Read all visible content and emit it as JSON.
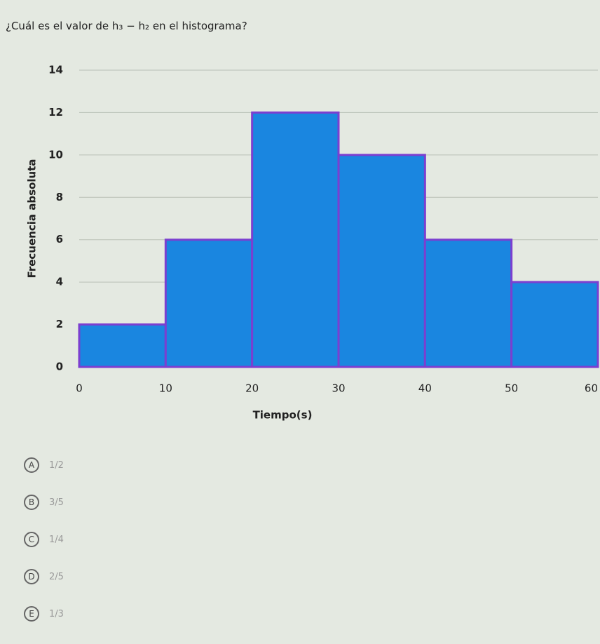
{
  "question": "¿Cuál es el valor de h₃ − h₂ en el histograma?",
  "chart_data": {
    "type": "histogram",
    "xlabel": "Tiempo(s)",
    "ylabel": "Frecuencia absoluta",
    "bins": [
      0,
      10,
      20,
      30,
      40,
      50,
      60
    ],
    "values": [
      2,
      6,
      12,
      10,
      6,
      4
    ],
    "color": "#1a86e0",
    "edgecolor": "#7b3fd0",
    "xlim": [
      0,
      60
    ],
    "xticks": [
      0,
      10,
      20,
      30,
      40,
      50,
      60
    ],
    "ylim": [
      0,
      14
    ],
    "yticks": [
      0,
      2,
      4,
      6,
      8,
      10,
      12,
      14
    ],
    "grid": true
  },
  "options": [
    {
      "letter": "A",
      "text": "1/2"
    },
    {
      "letter": "B",
      "text": "3/5"
    },
    {
      "letter": "C",
      "text": "1/4"
    },
    {
      "letter": "D",
      "text": "2/5"
    },
    {
      "letter": "E",
      "text": "1/3"
    }
  ]
}
